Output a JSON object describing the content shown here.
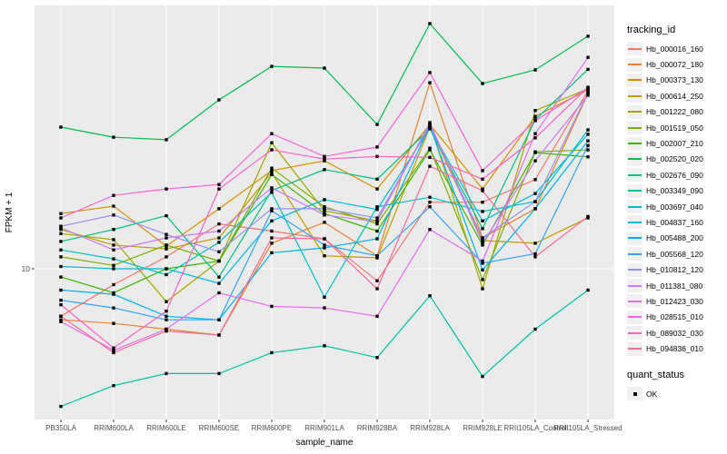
{
  "chart_data": {
    "type": "line",
    "title": "",
    "xlabel": "sample_name",
    "ylabel": "FPKM + 1",
    "y_scale": "log10",
    "y_ticks": [
      10
    ],
    "grid": "major-only",
    "legend_position": "right",
    "colors": {
      "panel_background": "#EBEBEB",
      "gridline": "#FFFFFF",
      "point": "#000000",
      "axis_text": "#4D4D4D",
      "legend_key_background": "#F0F0F0"
    },
    "x_categories": [
      "PB350LA",
      "RRIM600LA",
      "RRIM600LE",
      "RRIM600SE",
      "RRIM600PE",
      "RRIM901LA",
      "RRIM928BA",
      "RRIM928LA",
      "RRIM928LE",
      "RRII105LA_Control",
      "RRII105LA_Stressed"
    ],
    "legend": {
      "tracking_title": "tracking_id",
      "status_title": "quant_status",
      "status_label": "OK"
    },
    "series": [
      {
        "name": "Hb_000016_160",
        "color": "#F8766D",
        "values": [
          6.6,
          8.7,
          11.1,
          14.8,
          13.9,
          13.0,
          9.0,
          17.9,
          17.9,
          21.8,
          47.4
        ]
      },
      {
        "name": "Hb_000072_180",
        "color": "#EA8331",
        "values": [
          6.4,
          6.2,
          5.9,
          5.6,
          12.5,
          15.0,
          11.2,
          50.9,
          13.1,
          16.9,
          46.3
        ]
      },
      {
        "name": "Hb_000373_130",
        "color": "#D89000",
        "values": [
          16.2,
          17.3,
          12.2,
          16.9,
          23.6,
          25.7,
          20.1,
          35.3,
          20.1,
          37.9,
          47.8
        ]
      },
      {
        "name": "Hb_000614_250",
        "color": "#C09B00",
        "values": [
          14.1,
          12.3,
          11.9,
          13.1,
          23.2,
          11.2,
          11.0,
          34.5,
          12.8,
          12.5,
          15.6
        ]
      },
      {
        "name": "Hb_001222_080",
        "color": "#A3A500",
        "values": [
          13.6,
          12.9,
          7.5,
          10.7,
          30.1,
          16.6,
          15.2,
          35.6,
          8.4,
          39.9,
          48.2
        ]
      },
      {
        "name": "Hb_001519_050",
        "color": "#7CAE00",
        "values": [
          11.1,
          10.3,
          12.3,
          10.7,
          24.1,
          17.2,
          14.8,
          28.7,
          9.1,
          27.8,
          28.3
        ]
      },
      {
        "name": "Hb_002007_210",
        "color": "#39B600",
        "values": [
          9.3,
          8.1,
          10.0,
          10.7,
          22.8,
          16.2,
          13.9,
          28.3,
          12.3,
          27.6,
          26.6
        ]
      },
      {
        "name": "Hb_002520_020",
        "color": "#00BB4E",
        "values": [
          34.5,
          31.6,
          30.9,
          43.8,
          58.7,
          57.8,
          35.3,
          85.3,
          50.5,
          56.9,
          76.4
        ]
      },
      {
        "name": "Hb_002676_090",
        "color": "#00BF7D",
        "values": [
          12.7,
          14.1,
          15.9,
          9.3,
          19.8,
          23.8,
          21.9,
          34.0,
          14.2,
          36.8,
          57.2
        ]
      },
      {
        "name": "Hb_003349_090",
        "color": "#00C1A3",
        "values": [
          3.0,
          3.6,
          4.0,
          4.0,
          4.8,
          5.1,
          4.6,
          7.9,
          3.9,
          5.9,
          8.3
        ]
      },
      {
        "name": "Hb_003697_040",
        "color": "#00BFC4",
        "values": [
          11.8,
          10.9,
          9.5,
          12.6,
          19.5,
          7.8,
          17.2,
          18.7,
          16.5,
          18.0,
          33.7
        ]
      },
      {
        "name": "Hb_004837_160",
        "color": "#00BAE0",
        "values": [
          10.2,
          10.0,
          10.0,
          8.8,
          15.2,
          18.3,
          16.8,
          34.2,
          15.2,
          19.3,
          32.4
        ]
      },
      {
        "name": "Hb_005488_200",
        "color": "#00B0F6",
        "values": [
          8.3,
          8.0,
          6.6,
          6.4,
          11.5,
          12.0,
          13.0,
          34.8,
          9.9,
          16.9,
          30.6
        ]
      },
      {
        "name": "Hb_005568_120",
        "color": "#35A2FF",
        "values": [
          7.6,
          7.1,
          6.4,
          6.4,
          16.6,
          12.3,
          11.2,
          17.2,
          10.5,
          11.4,
          29.4
        ]
      },
      {
        "name": "Hb_010812_120",
        "color": "#9590FF",
        "values": [
          14.5,
          16.0,
          13.5,
          11.6,
          16.9,
          16.9,
          15.6,
          35.1,
          13.1,
          18.0,
          46.6
        ]
      },
      {
        "name": "Hb_011381_080",
        "color": "#C77CFF",
        "values": [
          14.3,
          11.8,
          13.1,
          13.9,
          20.3,
          16.0,
          15.1,
          35.9,
          12.5,
          25.7,
          45.6
        ]
      },
      {
        "name": "Hb_012423_030",
        "color": "#E76BF3",
        "values": [
          6.3,
          4.9,
          5.9,
          8.1,
          7.2,
          7.1,
          6.6,
          14.1,
          10.7,
          32.6,
          63.5
        ]
      },
      {
        "name": "Hb_028515_010",
        "color": "#FA62DB",
        "values": [
          15.6,
          19.0,
          20.1,
          20.9,
          32.6,
          26.7,
          29.0,
          55.6,
          23.6,
          36.5,
          48.6
        ]
      },
      {
        "name": "Hb_089032_030",
        "color": "#FF61C9",
        "values": [
          7.3,
          5.0,
          6.9,
          20.1,
          28.3,
          26.1,
          26.7,
          26.5,
          21.9,
          31.4,
          48.9
        ]
      },
      {
        "name": "Hb_094836_010",
        "color": "#FF6A98",
        "values": [
          6.6,
          4.8,
          5.8,
          5.6,
          13.1,
          13.0,
          8.4,
          24.5,
          19.8,
          11.1,
          15.8
        ]
      }
    ]
  }
}
